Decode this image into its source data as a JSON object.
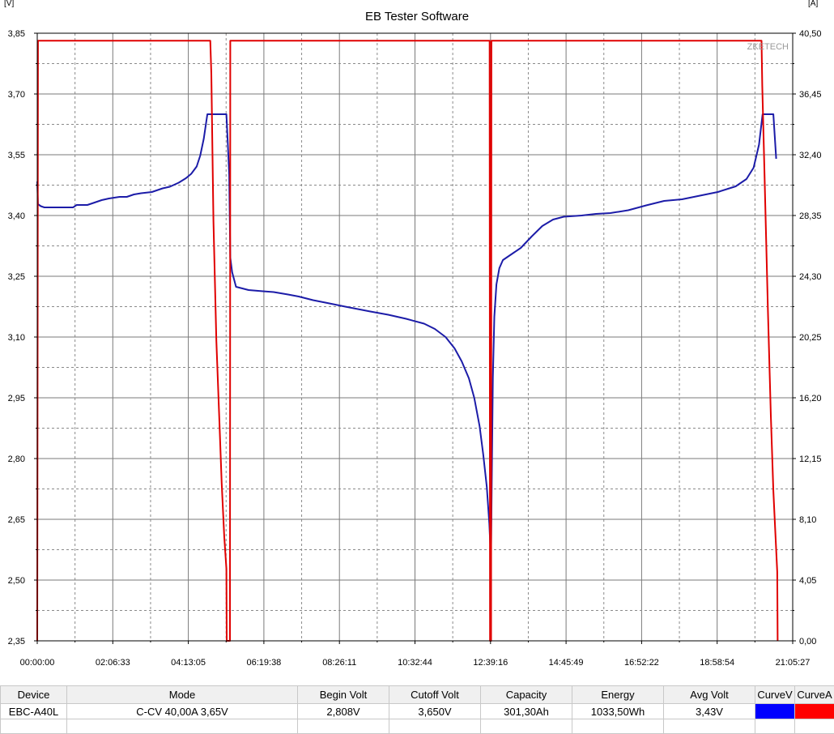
{
  "chart_data": {
    "type": "line",
    "title": "EB Tester Software",
    "watermark": "ZKETECH",
    "y_left_unit": "[V]",
    "y_right_unit": "[A]",
    "x_ticks": [
      "00:00:00",
      "02:06:33",
      "04:13:05",
      "06:19:38",
      "08:26:11",
      "10:32:44",
      "12:39:16",
      "14:45:49",
      "16:52:22",
      "18:58:54",
      "21:05:27"
    ],
    "y_left_ticks": [
      "3,85",
      "3,70",
      "3,55",
      "3,40",
      "3,25",
      "3,10",
      "2,95",
      "2,80",
      "2,65",
      "2,50",
      "2,35"
    ],
    "y_right_ticks": [
      "40,50",
      "36,45",
      "32,40",
      "28,35",
      "24,30",
      "20,25",
      "16,20",
      "12,15",
      "8,10",
      "4,05",
      "0,00"
    ],
    "xlim_hours": [
      0,
      21.0908
    ],
    "ylim_left": [
      2.35,
      3.85
    ],
    "ylim_right": [
      0,
      40.5
    ],
    "grid": true,
    "series": [
      {
        "name": "CurveV",
        "axis": "left",
        "color": "#1c1ca8",
        "points": [
          [
            0.0,
            3.484
          ],
          [
            0.02,
            3.428
          ],
          [
            0.1,
            3.423
          ],
          [
            0.2,
            3.42
          ],
          [
            0.5,
            3.42
          ],
          [
            1.0,
            3.42
          ],
          [
            1.1,
            3.426
          ],
          [
            1.4,
            3.426
          ],
          [
            1.6,
            3.432
          ],
          [
            1.8,
            3.438
          ],
          [
            2.0,
            3.442
          ],
          [
            2.3,
            3.446
          ],
          [
            2.5,
            3.446
          ],
          [
            2.7,
            3.452
          ],
          [
            2.9,
            3.455
          ],
          [
            3.2,
            3.458
          ],
          [
            3.5,
            3.467
          ],
          [
            3.7,
            3.471
          ],
          [
            3.95,
            3.481
          ],
          [
            4.15,
            3.492
          ],
          [
            4.3,
            3.503
          ],
          [
            4.45,
            3.521
          ],
          [
            4.55,
            3.548
          ],
          [
            4.65,
            3.59
          ],
          [
            4.75,
            3.65
          ],
          [
            5.0,
            3.65
          ],
          [
            5.28,
            3.65
          ],
          [
            5.32,
            3.58
          ],
          [
            5.36,
            3.5
          ],
          [
            5.39,
            3.296
          ],
          [
            5.44,
            3.26
          ],
          [
            5.55,
            3.224
          ],
          [
            5.9,
            3.216
          ],
          [
            6.3,
            3.213
          ],
          [
            6.6,
            3.211
          ],
          [
            7.0,
            3.205
          ],
          [
            7.3,
            3.2
          ],
          [
            7.7,
            3.191
          ],
          [
            8.1,
            3.184
          ],
          [
            8.6,
            3.175
          ],
          [
            9.3,
            3.163
          ],
          [
            9.8,
            3.155
          ],
          [
            10.3,
            3.145
          ],
          [
            10.8,
            3.133
          ],
          [
            11.1,
            3.12
          ],
          [
            11.4,
            3.1
          ],
          [
            11.65,
            3.072
          ],
          [
            11.85,
            3.04
          ],
          [
            12.05,
            2.998
          ],
          [
            12.2,
            2.95
          ],
          [
            12.35,
            2.88
          ],
          [
            12.45,
            2.81
          ],
          [
            12.55,
            2.73
          ],
          [
            12.62,
            2.64
          ],
          [
            12.65,
            2.583
          ],
          [
            12.67,
            2.585
          ],
          [
            12.72,
            3.0
          ],
          [
            12.76,
            3.15
          ],
          [
            12.82,
            3.23
          ],
          [
            12.9,
            3.27
          ],
          [
            13.0,
            3.29
          ],
          [
            13.2,
            3.302
          ],
          [
            13.5,
            3.32
          ],
          [
            13.8,
            3.348
          ],
          [
            14.1,
            3.374
          ],
          [
            14.4,
            3.39
          ],
          [
            14.7,
            3.397
          ],
          [
            15.2,
            3.4
          ],
          [
            15.6,
            3.404
          ],
          [
            16.0,
            3.406
          ],
          [
            16.5,
            3.413
          ],
          [
            17.0,
            3.425
          ],
          [
            17.5,
            3.436
          ],
          [
            18.0,
            3.44
          ],
          [
            18.5,
            3.449
          ],
          [
            19.0,
            3.458
          ],
          [
            19.5,
            3.472
          ],
          [
            19.8,
            3.49
          ],
          [
            20.0,
            3.518
          ],
          [
            20.15,
            3.575
          ],
          [
            20.25,
            3.65
          ],
          [
            20.55,
            3.65
          ],
          [
            20.63,
            3.54
          ]
        ]
      },
      {
        "name": "CurveA",
        "axis": "right",
        "color": "#e00000",
        "points": [
          [
            0.0,
            0.0
          ],
          [
            0.02,
            40.0
          ],
          [
            4.83,
            40.0
          ],
          [
            4.86,
            37.8
          ],
          [
            4.92,
            28.0
          ],
          [
            5.0,
            20.0
          ],
          [
            5.08,
            15.0
          ],
          [
            5.15,
            10.5
          ],
          [
            5.22,
            7.0
          ],
          [
            5.28,
            4.8
          ],
          [
            5.29,
            0.0
          ],
          [
            5.38,
            0.0
          ],
          [
            5.39,
            40.0
          ],
          [
            12.63,
            40.0
          ],
          [
            12.64,
            0.0
          ],
          [
            12.67,
            0.0
          ],
          [
            12.68,
            40.0
          ],
          [
            20.22,
            40.0
          ],
          [
            20.24,
            37.0
          ],
          [
            20.3,
            31.5
          ],
          [
            20.4,
            22.0
          ],
          [
            20.48,
            15.0
          ],
          [
            20.55,
            10.0
          ],
          [
            20.6,
            7.5
          ],
          [
            20.66,
            4.6
          ],
          [
            20.67,
            0.0
          ]
        ]
      }
    ]
  },
  "table": {
    "headers": [
      "Device",
      "Mode",
      "Begin Volt",
      "Cutoff Volt",
      "Capacity",
      "Energy",
      "Avg Volt",
      "CurveV",
      "CurveA"
    ],
    "row": [
      "EBC-A40L",
      "C-CV  40,00A  3,65V",
      "2,808V",
      "3,650V",
      "301,30Ah",
      "1033,50Wh",
      "3,43V"
    ],
    "swatch_colors": [
      "#0000ff",
      "#ff0000"
    ]
  }
}
